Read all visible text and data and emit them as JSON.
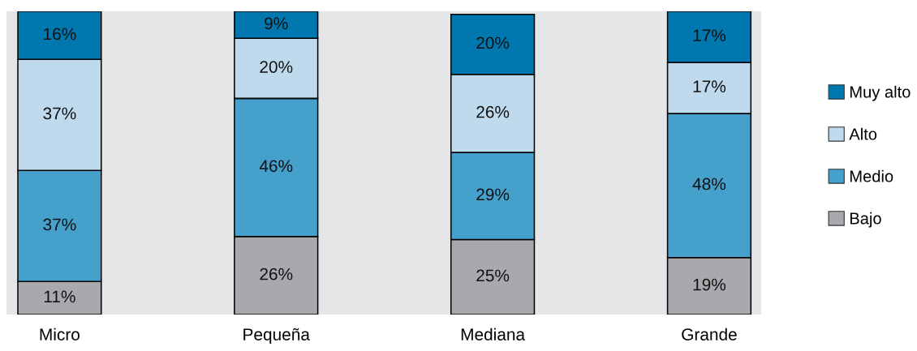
{
  "chart_data": {
    "type": "bar",
    "stacked": true,
    "categories": [
      "Micro",
      "Pequeña",
      "Mediana",
      "Grande"
    ],
    "series": [
      {
        "name": "Bajo",
        "color": "#a8a9ad",
        "values": [
          11,
          26,
          25,
          19
        ],
        "value_labels": [
          "11%",
          "26%",
          "25%",
          "19%"
        ]
      },
      {
        "name": "Medio",
        "color": "#45a0cb",
        "values": [
          37,
          46,
          29,
          48
        ],
        "value_labels": [
          "37%",
          "46%",
          "29%",
          "48%"
        ]
      },
      {
        "name": "Alto",
        "color": "#bedaec",
        "values": [
          37,
          20,
          26,
          17
        ],
        "value_labels": [
          "37%",
          "20%",
          "26%",
          "17%"
        ]
      },
      {
        "name": "Muy alto",
        "color": "#0077ae",
        "values": [
          16,
          9,
          20,
          17
        ],
        "value_labels": [
          "16%",
          "9%",
          "20%",
          "17%"
        ]
      }
    ],
    "ylim": [
      0,
      101
    ],
    "tick_labels": "x",
    "legend": "right",
    "grid": false
  }
}
